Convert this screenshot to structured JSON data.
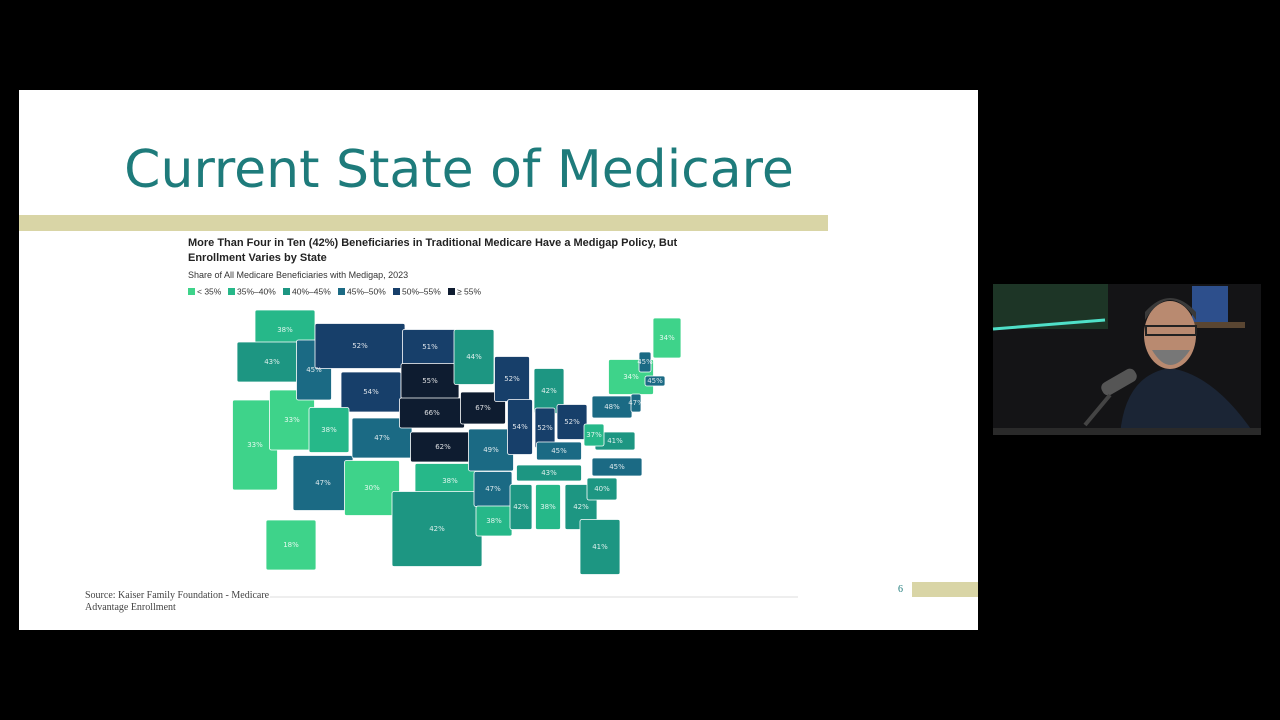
{
  "slide": {
    "title": "Current State of Medicare",
    "source": "Source: Kaiser Family Foundation - Medicare Advantage Enrollment",
    "page_number": "6"
  },
  "map": {
    "title": "More Than Four in Ten (42%) Beneficiaries in Traditional Medicare Have a Medigap Policy, But Enrollment Varies by State",
    "subtitle": "Share of All Medicare Beneficiaries with Medigap, 2023",
    "legend": [
      {
        "label": "< 35%",
        "color": "#3ed38a"
      },
      {
        "label": "35%–40%",
        "color": "#26b889"
      },
      {
        "label": "40%–45%",
        "color": "#1d9682"
      },
      {
        "label": "45%–50%",
        "color": "#1b6a84"
      },
      {
        "label": "50%–55%",
        "color": "#173f6a"
      },
      {
        "label": "≥ 55%",
        "color": "#0e1c30"
      }
    ],
    "states": [
      {
        "label": "38%",
        "color": "#26b889"
      },
      {
        "label": "43%",
        "color": "#1d9682"
      },
      {
        "label": "33%",
        "color": "#3ed38a"
      },
      {
        "label": "33%",
        "color": "#3ed38a"
      },
      {
        "label": "45%",
        "color": "#1b6a84"
      },
      {
        "label": "52%",
        "color": "#173f6a"
      },
      {
        "label": "54%",
        "color": "#173f6a"
      },
      {
        "label": "38%",
        "color": "#26b889"
      },
      {
        "label": "47%",
        "color": "#1b6a84"
      },
      {
        "label": "47%",
        "color": "#1b6a84"
      },
      {
        "label": "30%",
        "color": "#3ed38a"
      },
      {
        "label": "51%",
        "color": "#173f6a"
      },
      {
        "label": "55%",
        "color": "#0e1c30"
      },
      {
        "label": "66%",
        "color": "#0e1c30"
      },
      {
        "label": "62%",
        "color": "#0e1c30"
      },
      {
        "label": "38%",
        "color": "#26b889"
      },
      {
        "label": "42%",
        "color": "#1d9682"
      },
      {
        "label": "44%",
        "color": "#1d9682"
      },
      {
        "label": "67%",
        "color": "#0e1c30"
      },
      {
        "label": "49%",
        "color": "#1b6a84"
      },
      {
        "label": "47%",
        "color": "#1b6a84"
      },
      {
        "label": "38%",
        "color": "#26b889"
      },
      {
        "label": "52%",
        "color": "#173f6a"
      },
      {
        "label": "54%",
        "color": "#173f6a"
      },
      {
        "label": "42%",
        "color": "#1d9682"
      },
      {
        "label": "52%",
        "color": "#173f6a"
      },
      {
        "label": "52%",
        "color": "#173f6a"
      },
      {
        "label": "45%",
        "color": "#1b6a84"
      },
      {
        "label": "43%",
        "color": "#1d9682"
      },
      {
        "label": "42%",
        "color": "#1d9682"
      },
      {
        "label": "38%",
        "color": "#26b889"
      },
      {
        "label": "42%",
        "color": "#1d9682"
      },
      {
        "label": "41%",
        "color": "#1d9682"
      },
      {
        "label": "40%",
        "color": "#1d9682"
      },
      {
        "label": "45%",
        "color": "#1b6a84"
      },
      {
        "label": "41%",
        "color": "#1d9682"
      },
      {
        "label": "37%",
        "color": "#26b889"
      },
      {
        "label": "48%",
        "color": "#1b6a84"
      },
      {
        "label": "34%",
        "color": "#3ed38a"
      },
      {
        "label": "47%",
        "color": "#1b6a84"
      },
      {
        "label": "45%",
        "color": "#1b6a84"
      },
      {
        "label": "45%",
        "color": "#1b6a84"
      },
      {
        "label": "34%",
        "color": "#3ed38a"
      },
      {
        "label": "18%",
        "color": "#3ed38a"
      }
    ]
  }
}
